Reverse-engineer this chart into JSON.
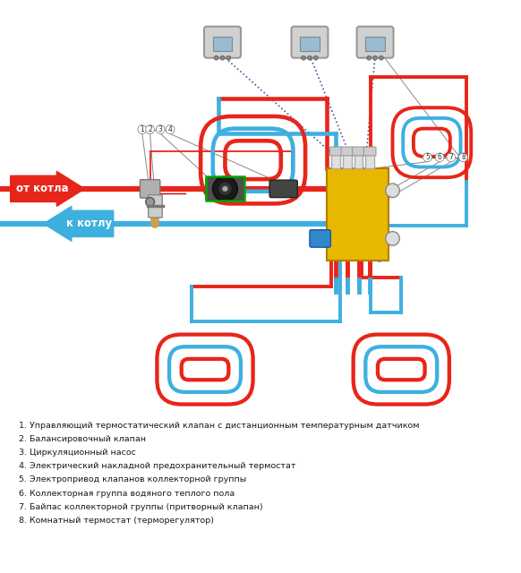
{
  "bg_color": "#ffffff",
  "red": "#e8251a",
  "blue": "#3db0e0",
  "from_boiler_text": "от котла",
  "to_boiler_text": "к котлу",
  "legend_items": [
    "1. Управляющий термостатический клапан с дистанционным температурным датчиком",
    "2. Балансировочный клапан",
    "3. Циркуляционный насос",
    "4. Электрический накладной предохранительный термостат",
    "5. Электропривод клапанов коллекторной группы",
    "6. Коллекторная группа водяного теплого пола",
    "7. Байпас коллекторной группы (притворный клапан)",
    "8. Комнатный термостат (терморегулятор)"
  ],
  "plw": 4.5,
  "clw": 2.8,
  "green_rect_color": "#00aa00",
  "dashed_color": "#4455aa",
  "label_color": "#444444",
  "wire_color": "#888888"
}
